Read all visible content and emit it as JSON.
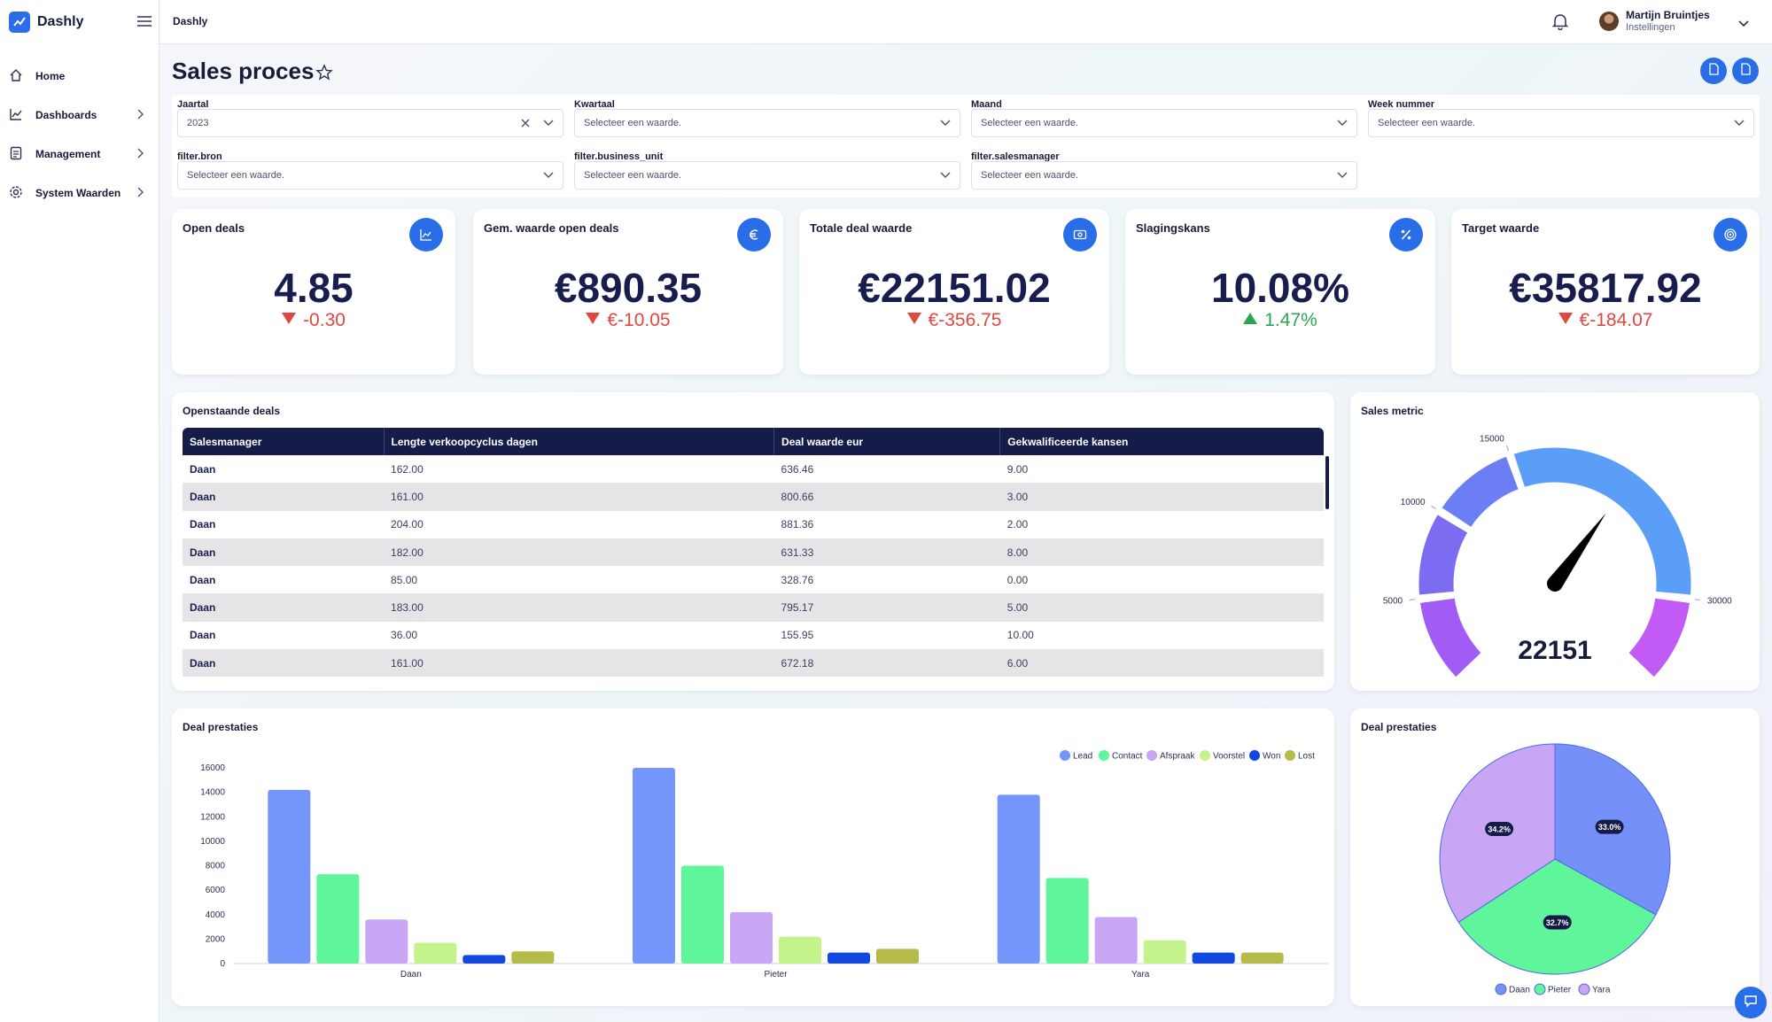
{
  "app": {
    "name": "Dashly",
    "topbar_title": "Dashly",
    "user": {
      "name": "Martijn Bruintjes",
      "subtitle": "Instellingen"
    }
  },
  "sidebar": {
    "items": [
      {
        "label": "Home",
        "icon": "home-icon",
        "has_children": false
      },
      {
        "label": "Dashboards",
        "icon": "chart-line-icon",
        "has_children": true
      },
      {
        "label": "Management",
        "icon": "document-icon",
        "has_children": true
      },
      {
        "label": "System Waarden",
        "icon": "gear-icon",
        "has_children": true
      }
    ]
  },
  "page": {
    "title": "Sales proces"
  },
  "filters": {
    "placeholder": "Selecteer een waarde.",
    "items": [
      {
        "label": "Jaartal",
        "value": "2023"
      },
      {
        "label": "Kwartaal",
        "value": ""
      },
      {
        "label": "Maand",
        "value": ""
      },
      {
        "label": "Week nummer",
        "value": ""
      },
      {
        "label": "filter.bron",
        "value": ""
      },
      {
        "label": "filter.business_unit",
        "value": ""
      },
      {
        "label": "filter.salesmanager",
        "value": ""
      }
    ]
  },
  "kpis": [
    {
      "title": "Open deals",
      "value": "4.85",
      "delta": "-0.30",
      "direction": "down",
      "icon": "chart-icon"
    },
    {
      "title": "Gem. waarde open deals",
      "value": "€890.35",
      "delta": "€-10.05",
      "direction": "down",
      "icon": "euro-icon"
    },
    {
      "title": "Totale deal waarde",
      "value": "€22151.02",
      "delta": "€-356.75",
      "direction": "down",
      "icon": "cash-icon"
    },
    {
      "title": "Slagingskans",
      "value": "10.08%",
      "delta": "1.47%",
      "direction": "up",
      "icon": "percent-icon"
    },
    {
      "title": "Target waarde",
      "value": "€35817.92",
      "delta": "€-184.07",
      "direction": "down",
      "icon": "target-icon"
    }
  ],
  "deals_table": {
    "title": "Openstaande deals",
    "columns": [
      "Salesmanager",
      "Lengte verkoopcyclus dagen",
      "Deal waarde eur",
      "Gekwalificeerde kansen"
    ],
    "rows": [
      [
        "Daan",
        "162.00",
        "636.46",
        "9.00"
      ],
      [
        "Daan",
        "161.00",
        "800.66",
        "3.00"
      ],
      [
        "Daan",
        "204.00",
        "881.36",
        "2.00"
      ],
      [
        "Daan",
        "182.00",
        "631.33",
        "8.00"
      ],
      [
        "Daan",
        "85.00",
        "328.76",
        "0.00"
      ],
      [
        "Daan",
        "183.00",
        "795.17",
        "5.00"
      ],
      [
        "Daan",
        "36.00",
        "155.95",
        "10.00"
      ],
      [
        "Daan",
        "161.00",
        "672.18",
        "6.00"
      ]
    ]
  },
  "gauge": {
    "title": "Sales metric",
    "value": 22151,
    "display_value": "22151",
    "min": 0,
    "max": 35000,
    "tick_labels": [
      "5000",
      "10000",
      "15000",
      "30000"
    ],
    "colors": [
      "#a25cf5",
      "#7c6cf1",
      "#6c7ef4",
      "#5a9ef8",
      "#c25af5"
    ]
  },
  "bar_panel": {
    "title": "Deal prestaties"
  },
  "pie_panel": {
    "title": "Deal prestaties"
  },
  "chart_data": [
    {
      "type": "bar",
      "categories": [
        "Daan",
        "Pieter",
        "Yara"
      ],
      "series": [
        {
          "name": "Lead",
          "color": "#7495fa",
          "values": [
            14200,
            16000,
            13800
          ]
        },
        {
          "name": "Contact",
          "color": "#5ef59b",
          "values": [
            7300,
            8000,
            7000
          ]
        },
        {
          "name": "Afspraak",
          "color": "#c8a6f5",
          "values": [
            3600,
            4200,
            3800
          ]
        },
        {
          "name": "Voorstel",
          "color": "#c3f38a",
          "values": [
            1700,
            2200,
            1900
          ]
        },
        {
          "name": "Won",
          "color": "#1048e0",
          "values": [
            700,
            900,
            900
          ]
        },
        {
          "name": "Lost",
          "color": "#b4bb48",
          "values": [
            1000,
            1200,
            900
          ]
        }
      ],
      "ylim": [
        0,
        16000
      ],
      "yticks": [
        "0",
        "2000",
        "4000",
        "6000",
        "8000",
        "10000",
        "12000",
        "14000",
        "16000"
      ],
      "legend": "top-right",
      "title": "",
      "xlabel": "",
      "ylabel": ""
    },
    {
      "type": "pie",
      "labels": [
        "Daan",
        "Pieter",
        "Yara"
      ],
      "values": [
        33.0,
        32.7,
        34.2
      ],
      "display_labels": [
        "33.0%",
        "32.7%",
        "34.2%"
      ],
      "colors": [
        "#7590f8",
        "#5ef59b",
        "#c8a6f5"
      ],
      "legend": "bottom",
      "title": ""
    }
  ]
}
